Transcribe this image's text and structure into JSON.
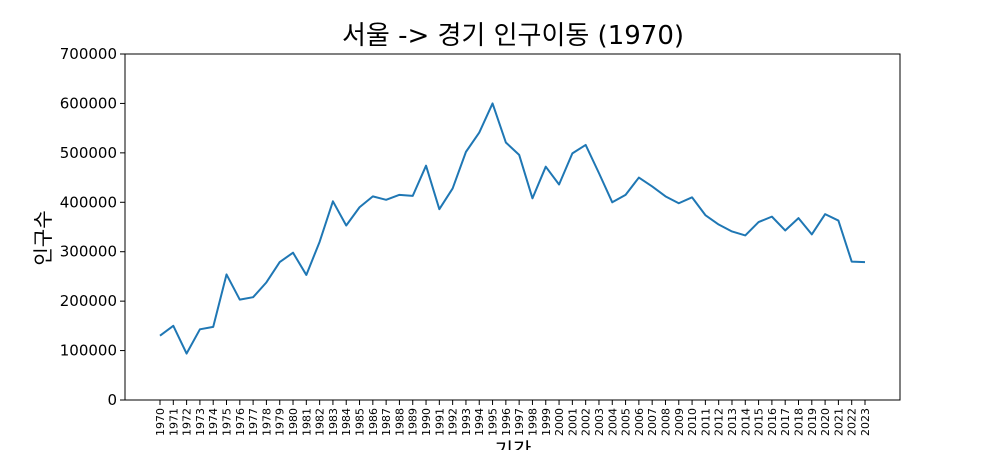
{
  "chart_data": {
    "type": "line",
    "title": "서울 -> 경기 인구이동 (1970)",
    "xlabel": "기간",
    "ylabel": "인구수",
    "ylim": [
      0,
      700000
    ],
    "yticks": [
      "0",
      "100000",
      "200000",
      "300000",
      "400000",
      "500000",
      "600000",
      "700000"
    ],
    "grid": false,
    "line_color": "#1f77b4",
    "categories": [
      "1970",
      "1971",
      "1972",
      "1973",
      "1974",
      "1975",
      "1976",
      "1977",
      "1978",
      "1979",
      "1980",
      "1981",
      "1982",
      "1983",
      "1984",
      "1985",
      "1986",
      "1987",
      "1988",
      "1989",
      "1990",
      "1991",
      "1992",
      "1993",
      "1994",
      "1995",
      "1996",
      "1997",
      "1998",
      "1999",
      "2000",
      "2001",
      "2002",
      "2003",
      "2004",
      "2005",
      "2006",
      "2007",
      "2008",
      "2009",
      "2010",
      "2011",
      "2012",
      "2013",
      "2014",
      "2015",
      "2016",
      "2017",
      "2018",
      "2019",
      "2020",
      "2021",
      "2022",
      "2023"
    ],
    "series": [
      {
        "name": "",
        "values": [
          130000,
          150000,
          94000,
          143000,
          148000,
          254000,
          203000,
          208000,
          238000,
          279000,
          298000,
          253000,
          320000,
          402000,
          353000,
          390000,
          412000,
          405000,
          415000,
          413000,
          474000,
          386000,
          428000,
          502000,
          541000,
          600000,
          521000,
          496000,
          408000,
          472000,
          436000,
          499000,
          516000,
          459000,
          400000,
          415000,
          450000,
          432000,
          412000,
          398000,
          410000,
          374000,
          355000,
          341000,
          333000,
          360000,
          371000,
          343000,
          368000,
          335000,
          376000,
          363000,
          280000,
          279000
        ]
      }
    ]
  }
}
